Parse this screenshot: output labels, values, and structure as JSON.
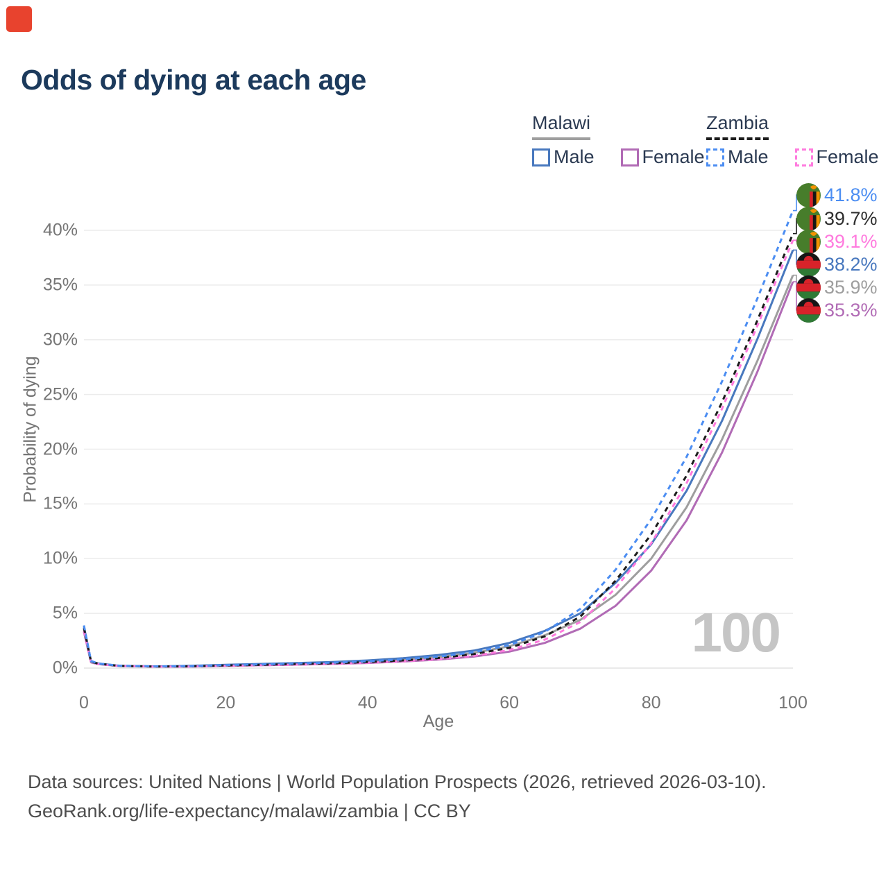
{
  "title": "Odds of dying at each age",
  "watermark": "100",
  "marker_color": "#e8432e",
  "legend": {
    "groups": [
      {
        "country": "Malawi",
        "line_style": "solid",
        "underline_color": "#9e9e9e",
        "items": [
          {
            "label": "Male",
            "color": "#4878be"
          },
          {
            "label": "Female",
            "color": "#b16bb5"
          }
        ]
      },
      {
        "country": "Zambia",
        "line_style": "dashed",
        "underline_color": "#1c1c1c",
        "items": [
          {
            "label": "Male",
            "color": "#4b8df2"
          },
          {
            "label": "Female",
            "color": "#ff7ade"
          }
        ]
      }
    ]
  },
  "axes": {
    "y": {
      "title": "Probability of dying",
      "ticks": [
        "0%",
        "5%",
        "10%",
        "15%",
        "20%",
        "25%",
        "30%",
        "35%",
        "40%"
      ]
    },
    "x": {
      "title": "Age",
      "ticks": [
        "0",
        "20",
        "40",
        "60",
        "80",
        "100"
      ]
    }
  },
  "end_labels": {
    "rows": [
      {
        "flag": "zambia",
        "value": "41.8%",
        "color": "#4b8df2"
      },
      {
        "flag": "zambia",
        "value": "39.7%",
        "color": "#2e2e2e"
      },
      {
        "flag": "zambia",
        "value": "39.1%",
        "color": "#ff7ade"
      },
      {
        "flag": "malawi",
        "value": "38.2%",
        "color": "#4878be"
      },
      {
        "flag": "malawi",
        "value": "35.9%",
        "color": "#9e9e9e"
      },
      {
        "flag": "malawi",
        "value": "35.3%",
        "color": "#b16bb5"
      }
    ]
  },
  "footer": {
    "line1": "Data sources: United Nations | World Population Prospects (2026, retrieved 2026-03-10).",
    "line2": "GeoRank.org/life-expectancy/malawi/zambia | CC BY"
  },
  "chart_data": {
    "type": "line",
    "title": "Odds of dying at each age",
    "xlabel": "Age",
    "ylabel": "Probability of dying",
    "xlim": [
      0,
      100
    ],
    "ylim": [
      0,
      43
    ],
    "grid": "horizontal",
    "legend_position": "top-right",
    "x": [
      0,
      1,
      2,
      5,
      10,
      15,
      20,
      25,
      30,
      35,
      40,
      45,
      50,
      55,
      60,
      65,
      70,
      75,
      80,
      85,
      90,
      95,
      100
    ],
    "series": [
      {
        "name": "Zambia Male",
        "style": "dashed",
        "color": "#4b8df2",
        "end_value_pct": 41.8,
        "values": [
          3.9,
          0.65,
          0.42,
          0.22,
          0.15,
          0.18,
          0.27,
          0.34,
          0.42,
          0.5,
          0.62,
          0.8,
          1.05,
          1.45,
          2.1,
          3.3,
          5.4,
          9.0,
          13.6,
          19.3,
          26.2,
          33.8,
          41.8
        ]
      },
      {
        "name": "Zambia",
        "style": "dashed",
        "color": "#1c1c1c",
        "end_value_pct": 39.7,
        "values": [
          3.65,
          0.6,
          0.4,
          0.2,
          0.14,
          0.16,
          0.24,
          0.3,
          0.37,
          0.44,
          0.55,
          0.7,
          0.92,
          1.28,
          1.85,
          2.9,
          4.7,
          8.0,
          12.2,
          17.6,
          24.3,
          31.8,
          39.7
        ]
      },
      {
        "name": "Zambia Female",
        "style": "dashed",
        "color": "#ff7ade",
        "end_value_pct": 39.1,
        "values": [
          3.4,
          0.55,
          0.37,
          0.19,
          0.13,
          0.14,
          0.2,
          0.26,
          0.32,
          0.38,
          0.48,
          0.62,
          0.82,
          1.12,
          1.65,
          2.6,
          4.2,
          7.3,
          11.4,
          16.9,
          23.7,
          31.3,
          39.1
        ]
      },
      {
        "name": "Malawi Male",
        "style": "solid",
        "color": "#4878be",
        "end_value_pct": 38.2,
        "values": [
          3.8,
          0.62,
          0.42,
          0.21,
          0.16,
          0.2,
          0.3,
          0.38,
          0.46,
          0.56,
          0.7,
          0.9,
          1.2,
          1.6,
          2.3,
          3.4,
          5.0,
          7.8,
          11.3,
          16.2,
          22.6,
          30.1,
          38.2
        ]
      },
      {
        "name": "Malawi",
        "style": "solid",
        "color": "#9e9e9e",
        "end_value_pct": 35.9,
        "values": [
          3.6,
          0.58,
          0.4,
          0.21,
          0.15,
          0.17,
          0.26,
          0.33,
          0.4,
          0.48,
          0.6,
          0.77,
          1.0,
          1.38,
          2.0,
          3.0,
          4.4,
          6.7,
          10.0,
          14.7,
          20.9,
          28.1,
          35.9
        ]
      },
      {
        "name": "Malawi Female",
        "style": "solid",
        "color": "#b16bb5",
        "end_value_pct": 35.3,
        "values": [
          3.3,
          0.52,
          0.36,
          0.19,
          0.13,
          0.14,
          0.2,
          0.26,
          0.32,
          0.38,
          0.47,
          0.6,
          0.78,
          1.05,
          1.5,
          2.3,
          3.6,
          5.7,
          8.9,
          13.5,
          19.7,
          27.1,
          35.3
        ]
      }
    ]
  }
}
